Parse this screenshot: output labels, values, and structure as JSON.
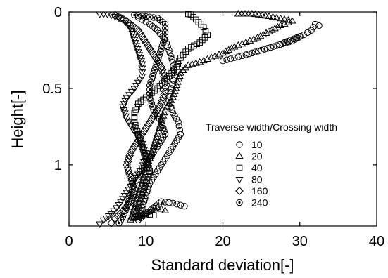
{
  "chart_data": {
    "type": "scatter",
    "xlabel": "Standard deviation[-]",
    "ylabel": "Height[-]",
    "xlim": [
      0,
      40
    ],
    "ylim": [
      0,
      1.4
    ],
    "y_inverted": true,
    "x_ticks": [
      0,
      10,
      20,
      30,
      40
    ],
    "y_ticks": [
      0,
      0.5,
      1
    ],
    "x_tick_labels": [
      "0",
      "10",
      "20",
      "30",
      "40"
    ],
    "y_tick_labels": [
      "0",
      "0.5",
      "1"
    ],
    "grid": false,
    "legend": {
      "title": "Traverse width/Crossing width",
      "placement": "right"
    },
    "series": [
      {
        "name": "10",
        "marker": "circle",
        "points": [
          [
            8.5,
            0.02
          ],
          [
            9.5,
            0.05
          ],
          [
            10.5,
            0.08
          ],
          [
            11.5,
            0.12
          ],
          [
            12.5,
            0.18
          ],
          [
            13.0,
            0.25
          ],
          [
            13.5,
            0.33
          ],
          [
            13.7,
            0.42
          ],
          [
            13.3,
            0.5
          ],
          [
            13.0,
            0.58
          ],
          [
            13.5,
            0.66
          ],
          [
            14.2,
            0.72
          ],
          [
            14.5,
            0.8
          ],
          [
            13.5,
            0.88
          ],
          [
            12.5,
            0.96
          ],
          [
            11.5,
            1.04
          ],
          [
            10.5,
            1.12
          ],
          [
            10.0,
            1.2
          ],
          [
            9.5,
            1.28
          ],
          [
            9.0,
            1.36
          ],
          [
            12.0,
            1.24
          ],
          [
            13.5,
            1.25
          ],
          [
            15.0,
            1.27
          ],
          [
            32.5,
            0.09
          ],
          [
            32.0,
            0.08
          ],
          [
            31.5,
            0.12
          ],
          [
            30.5,
            0.15
          ],
          [
            29.0,
            0.19
          ],
          [
            27.0,
            0.22
          ],
          [
            25.0,
            0.25
          ],
          [
            23.0,
            0.28
          ],
          [
            21.5,
            0.3
          ],
          [
            20.0,
            0.32
          ],
          [
            30.0,
            0.16
          ],
          [
            28.0,
            0.2
          ]
        ]
      },
      {
        "name": "20",
        "marker": "triangle-up",
        "points": [
          [
            22,
            0.0
          ],
          [
            26,
            0.03
          ],
          [
            28,
            0.05
          ],
          [
            29,
            0.06
          ],
          [
            27.5,
            0.09
          ],
          [
            26,
            0.13
          ],
          [
            24.5,
            0.17
          ],
          [
            23,
            0.2
          ],
          [
            21.5,
            0.23
          ],
          [
            20,
            0.27
          ],
          [
            18.5,
            0.3
          ],
          [
            17,
            0.33
          ],
          [
            15.5,
            0.35
          ],
          [
            14.5,
            0.4
          ],
          [
            14,
            0.48
          ],
          [
            13.5,
            0.56
          ],
          [
            12.5,
            0.64
          ],
          [
            12,
            0.72
          ],
          [
            11.5,
            0.8
          ],
          [
            11,
            0.88
          ],
          [
            10.5,
            0.96
          ],
          [
            10,
            1.04
          ],
          [
            9.5,
            1.12
          ],
          [
            9,
            1.2
          ],
          [
            8.5,
            1.28
          ],
          [
            8,
            1.36
          ],
          [
            11.5,
            1.28
          ],
          [
            12.5,
            1.3
          ]
        ]
      },
      {
        "name": "40",
        "marker": "square",
        "points": [
          [
            15.5,
            0.0
          ],
          [
            16.5,
            0.05
          ],
          [
            17.5,
            0.1
          ],
          [
            18,
            0.15
          ],
          [
            17,
            0.2
          ],
          [
            15.5,
            0.24
          ],
          [
            14.5,
            0.3
          ],
          [
            14,
            0.36
          ],
          [
            13,
            0.42
          ],
          [
            11.5,
            0.5
          ],
          [
            10,
            0.56
          ],
          [
            9,
            0.6
          ],
          [
            8.5,
            0.66
          ],
          [
            8.5,
            0.72
          ],
          [
            9,
            0.8
          ],
          [
            9.5,
            0.88
          ],
          [
            10,
            0.96
          ],
          [
            10.5,
            1.04
          ],
          [
            10,
            1.12
          ],
          [
            9.5,
            1.2
          ],
          [
            9,
            1.28
          ],
          [
            8.5,
            1.34
          ],
          [
            10,
            1.32
          ],
          [
            11,
            1.33
          ]
        ]
      },
      {
        "name": "80",
        "marker": "triangle-down",
        "points": [
          [
            4,
            0.0
          ],
          [
            5.5,
            0.02
          ],
          [
            7,
            0.05
          ],
          [
            8,
            0.1
          ],
          [
            8.5,
            0.18
          ],
          [
            9,
            0.26
          ],
          [
            9.5,
            0.34
          ],
          [
            9.5,
            0.42
          ],
          [
            8.5,
            0.5
          ],
          [
            7.5,
            0.56
          ],
          [
            7,
            0.62
          ],
          [
            7.5,
            0.7
          ],
          [
            8.5,
            0.78
          ],
          [
            9.5,
            0.86
          ],
          [
            10,
            0.94
          ],
          [
            9.5,
            1.02
          ],
          [
            8.5,
            1.1
          ],
          [
            7.5,
            1.18
          ],
          [
            6.5,
            1.26
          ],
          [
            5.5,
            1.32
          ],
          [
            4.5,
            1.36
          ],
          [
            4,
            1.39
          ]
        ]
      },
      {
        "name": "160",
        "marker": "diamond",
        "points": [
          [
            6,
            0.02
          ],
          [
            7.5,
            0.06
          ],
          [
            9,
            0.12
          ],
          [
            10,
            0.2
          ],
          [
            11,
            0.28
          ],
          [
            12,
            0.36
          ],
          [
            12.5,
            0.44
          ],
          [
            12.5,
            0.52
          ],
          [
            12,
            0.6
          ],
          [
            11,
            0.68
          ],
          [
            10,
            0.76
          ],
          [
            9,
            0.84
          ],
          [
            8,
            0.92
          ],
          [
            7.5,
            1.0
          ],
          [
            8,
            1.08
          ],
          [
            8.5,
            1.16
          ],
          [
            8,
            1.24
          ],
          [
            7,
            1.3
          ],
          [
            6,
            1.35
          ],
          [
            5.5,
            1.38
          ]
        ]
      },
      {
        "name": "240",
        "marker": "dotted-circle",
        "points": [
          [
            8.5,
            0.02
          ],
          [
            10,
            0.03
          ],
          [
            11.5,
            0.04
          ],
          [
            12.5,
            0.08
          ],
          [
            12.5,
            0.16
          ],
          [
            12,
            0.24
          ],
          [
            11.5,
            0.32
          ],
          [
            11,
            0.4
          ],
          [
            10.5,
            0.48
          ],
          [
            10.5,
            0.56
          ],
          [
            11,
            0.64
          ],
          [
            12,
            0.72
          ],
          [
            12.5,
            0.8
          ],
          [
            11.5,
            0.88
          ],
          [
            10.5,
            0.96
          ],
          [
            9.5,
            1.04
          ],
          [
            8.5,
            1.12
          ],
          [
            8,
            1.2
          ],
          [
            7.5,
            1.28
          ],
          [
            7,
            1.34
          ],
          [
            6.5,
            1.38
          ]
        ]
      }
    ]
  }
}
